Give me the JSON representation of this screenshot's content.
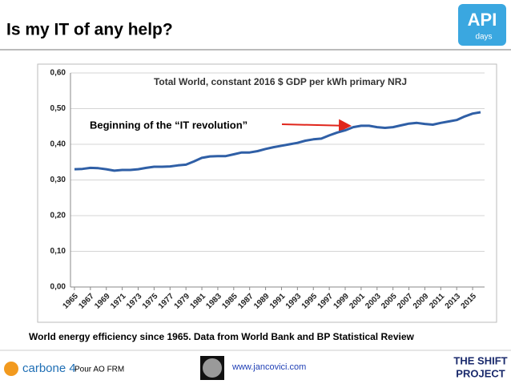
{
  "slide": {
    "title": "Is my IT of any help?",
    "logo_top": [
      "API",
      "days"
    ],
    "caption": "World energy efficiency since 1965. Data from World Bank and BP Statistical Review",
    "footer": {
      "brand": "carbone 4",
      "note": "Pour AO FRM",
      "url": "www.jancovici.com",
      "shift": [
        "THE SHIFT",
        "PROJECT"
      ]
    }
  },
  "chart_data": {
    "type": "line",
    "title": "Total World, constant 2016 $ GDP per kWh primary NRJ",
    "annotation": "Beginning of the “IT revolution”",
    "x": [
      1965,
      1966,
      1967,
      1968,
      1969,
      1970,
      1971,
      1972,
      1973,
      1974,
      1975,
      1976,
      1977,
      1978,
      1979,
      1980,
      1981,
      1982,
      1983,
      1984,
      1985,
      1986,
      1987,
      1988,
      1989,
      1990,
      1991,
      1992,
      1993,
      1994,
      1995,
      1996,
      1997,
      1998,
      1999,
      2000,
      2001,
      2002,
      2003,
      2004,
      2005,
      2006,
      2007,
      2008,
      2009,
      2010,
      2011,
      2012,
      2013,
      2014,
      2015,
      2016
    ],
    "values": [
      0.33,
      0.331,
      0.334,
      0.333,
      0.33,
      0.326,
      0.328,
      0.328,
      0.33,
      0.334,
      0.337,
      0.337,
      0.338,
      0.341,
      0.343,
      0.352,
      0.362,
      0.366,
      0.367,
      0.367,
      0.372,
      0.377,
      0.377,
      0.381,
      0.387,
      0.392,
      0.396,
      0.4,
      0.404,
      0.41,
      0.414,
      0.416,
      0.425,
      0.433,
      0.439,
      0.448,
      0.452,
      0.452,
      0.448,
      0.446,
      0.448,
      0.453,
      0.458,
      0.46,
      0.457,
      0.455,
      0.46,
      0.464,
      0.468,
      0.478,
      0.486,
      0.49
    ],
    "color": "#2f5fa6",
    "xlim": [
      1964.5,
      2016.5
    ],
    "xticks": [
      1965,
      1967,
      1969,
      1971,
      1973,
      1975,
      1977,
      1979,
      1981,
      1983,
      1985,
      1987,
      1989,
      1991,
      1993,
      1995,
      1997,
      1999,
      2001,
      2003,
      2005,
      2007,
      2009,
      2011,
      2013,
      2015
    ],
    "ylim": [
      0,
      0.6
    ],
    "yticks": [
      {
        "value": 0,
        "label": "0,00"
      },
      {
        "value": 0.1,
        "label": "0,10"
      },
      {
        "value": 0.2,
        "label": "0,20"
      },
      {
        "value": 0.3,
        "label": "0,30"
      },
      {
        "value": 0.4,
        "label": "0,40"
      },
      {
        "value": 0.5,
        "label": "0,50"
      },
      {
        "value": 0.6,
        "label": "0,60"
      }
    ],
    "grid": true
  }
}
